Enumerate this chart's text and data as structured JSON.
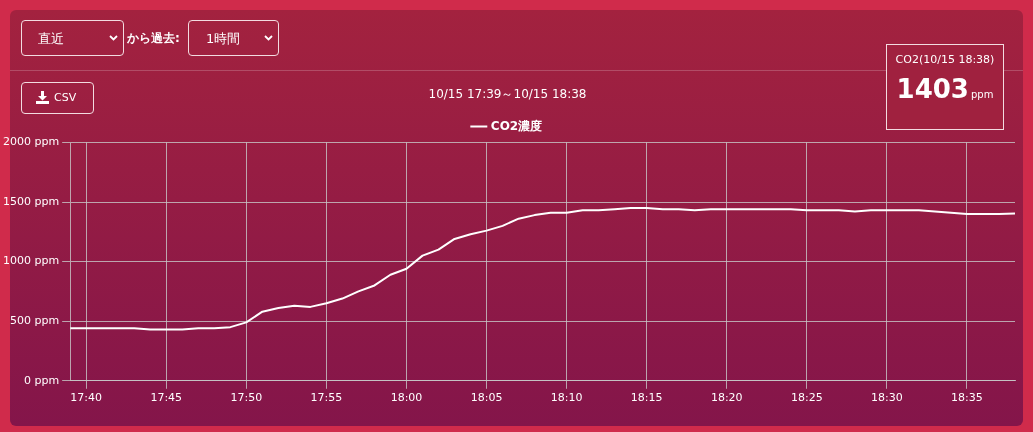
{
  "chart_data": {
    "type": "line",
    "title": "10/15 17:39～10/15 18:38",
    "annotations": [
      "直近",
      "から過去:",
      "1時間",
      "CSV",
      "CO2(10/15 18:38)",
      "1403",
      "ppm"
    ],
    "x": [
      17.65,
      17.6667,
      17.6833,
      17.7,
      17.7167,
      17.7333,
      17.75,
      17.7667,
      17.7833,
      17.8,
      17.8167,
      17.8333,
      17.85,
      17.8667,
      17.8833,
      17.9,
      17.9167,
      17.9333,
      17.95,
      17.9667,
      17.9833,
      18.0,
      18.0167,
      18.0333,
      18.05,
      18.0667,
      18.0833,
      18.1,
      18.1167,
      18.1333,
      18.15,
      18.1667,
      18.1833,
      18.2,
      18.2167,
      18.2333,
      18.25,
      18.2667,
      18.2833,
      18.3,
      18.3167,
      18.3333,
      18.35,
      18.3667,
      18.3833,
      18.4,
      18.4167,
      18.4333,
      18.45,
      18.4667,
      18.4833,
      18.5,
      18.5167,
      18.5333,
      18.55,
      18.5667,
      18.5833,
      18.6,
      18.6167,
      18.6333
    ],
    "series": [
      {
        "name": "CO2濃度",
        "color": "#ffffff",
        "values": [
          440,
          440,
          440,
          440,
          440,
          430,
          430,
          430,
          440,
          440,
          450,
          490,
          580,
          610,
          630,
          620,
          650,
          690,
          750,
          800,
          890,
          940,
          1050,
          1100,
          1190,
          1230,
          1260,
          1300,
          1360,
          1390,
          1410,
          1410,
          1430,
          1430,
          1440,
          1450,
          1450,
          1440,
          1440,
          1430,
          1440,
          1440,
          1440,
          1440,
          1440,
          1440,
          1430,
          1430,
          1430,
          1420,
          1430,
          1430,
          1430,
          1430,
          1420,
          1410,
          1400,
          1400,
          1400,
          1403
        ]
      }
    ],
    "xlim": [
      17.65,
      18.6333
    ],
    "xticks": [
      {
        "value": 17.6667,
        "label": "17:40"
      },
      {
        "value": 17.75,
        "label": "17:45"
      },
      {
        "value": 17.8333,
        "label": "17:50"
      },
      {
        "value": 17.9167,
        "label": "17:55"
      },
      {
        "value": 18.0,
        "label": "18:00"
      },
      {
        "value": 18.0833,
        "label": "18:05"
      },
      {
        "value": 18.1667,
        "label": "18:10"
      },
      {
        "value": 18.25,
        "label": "18:15"
      },
      {
        "value": 18.3333,
        "label": "18:20"
      },
      {
        "value": 18.4167,
        "label": "18:25"
      },
      {
        "value": 18.5,
        "label": "18:30"
      },
      {
        "value": 18.5833,
        "label": "18:35"
      }
    ],
    "ylim": [
      0,
      2000
    ],
    "yticks": [
      {
        "value": 0,
        "label": "0 ppm"
      },
      {
        "value": 500,
        "label": "500 ppm"
      },
      {
        "value": 1000,
        "label": "1000 ppm"
      },
      {
        "value": 1500,
        "label": "1500 ppm"
      },
      {
        "value": 2000,
        "label": "2000 ppm"
      }
    ],
    "grid": true,
    "legend": "top",
    "marker": "none",
    "line_style": "solid"
  }
}
